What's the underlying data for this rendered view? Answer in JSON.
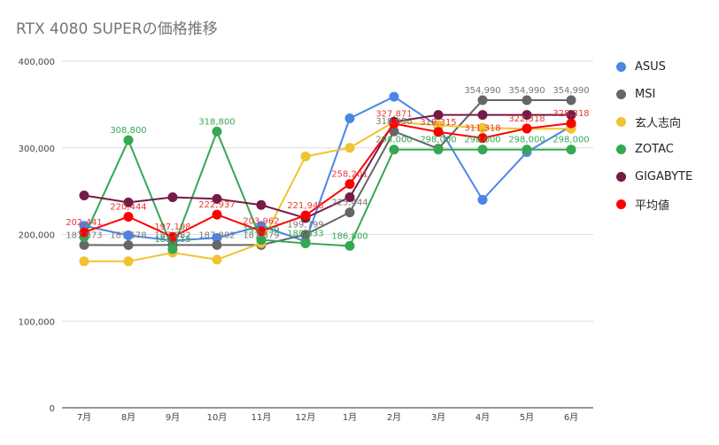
{
  "chart_data": {
    "type": "line",
    "title": "RTX 4080 SUPERの価格推移",
    "xlabel": "",
    "ylabel": "",
    "categories": [
      "7月",
      "8月",
      "9月",
      "10月",
      "11月",
      "12月",
      "1月",
      "2月",
      "3月",
      "4月",
      "5月",
      "6月"
    ],
    "ylim": [
      0,
      400000
    ],
    "yticks": [
      0,
      100000,
      200000,
      300000,
      400000
    ],
    "ytick_labels": [
      "0",
      "100,000",
      "200,000",
      "300,000",
      "400,000"
    ],
    "grid": true,
    "legend_position": "right",
    "series": [
      {
        "name": "ASUS",
        "color": "#4a86e8",
        "values": [
          210000,
          199000,
          193000,
          196000,
          210000,
          192000,
          334000,
          359000,
          325000,
          240000,
          295000,
          325000
        ]
      },
      {
        "name": "MSI",
        "color": "#666666",
        "values": [
          187873,
          187678,
          187882,
          187882,
          187879,
          199799,
          225444,
          318956,
          299000,
          354990,
          354990,
          354990
        ]
      },
      {
        "name": "玄人志向",
        "color": "#f1c232",
        "values": [
          169000,
          169000,
          179000,
          171000,
          190000,
          290000,
          300000,
          330000,
          326000,
          323000,
          322000,
          322000
        ]
      },
      {
        "name": "ZOTAC",
        "color": "#34a853",
        "values": [
          197000,
          308800,
          183115,
          318800,
          193799,
          189833,
          186800,
          298000,
          298000,
          298000,
          298000,
          298000
        ]
      },
      {
        "name": "GIGABYTE",
        "color": "#741b47",
        "values": [
          245000,
          237000,
          243000,
          241000,
          234000,
          219000,
          243000,
          330000,
          338000,
          338000,
          338000,
          338000
        ]
      },
      {
        "name": "平均値",
        "color": "#ff0000",
        "values": [
          202441,
          220444,
          197198,
          222937,
          203962,
          221948,
          258201,
          327871,
          318315,
          311318,
          322318,
          328318
        ]
      }
    ],
    "data_labels": [
      {
        "text": "202,441",
        "series": 5,
        "index": 0,
        "color": "#e53935"
      },
      {
        "text": "220,444",
        "series": 5,
        "index": 1,
        "color": "#e53935"
      },
      {
        "text": "197,198",
        "series": 5,
        "index": 2,
        "color": "#e53935"
      },
      {
        "text": "222,937",
        "series": 5,
        "index": 3,
        "color": "#e53935"
      },
      {
        "text": "203,962",
        "series": 5,
        "index": 4,
        "color": "#e53935"
      },
      {
        "text": "221,948",
        "series": 5,
        "index": 5,
        "color": "#e53935"
      },
      {
        "text": "258,201",
        "series": 5,
        "index": 6,
        "color": "#e53935"
      },
      {
        "text": "327,871",
        "series": 5,
        "index": 7,
        "color": "#e53935"
      },
      {
        "text": "318,315",
        "series": 5,
        "index": 8,
        "color": "#e53935"
      },
      {
        "text": "311,318",
        "series": 5,
        "index": 9,
        "color": "#e53935"
      },
      {
        "text": "322,318",
        "series": 5,
        "index": 10,
        "color": "#e53935"
      },
      {
        "text": "328,318",
        "series": 5,
        "index": 11,
        "color": "#e53935"
      },
      {
        "text": "187,873",
        "series": 1,
        "index": 0,
        "color": "#777777"
      },
      {
        "text": "187,678",
        "series": 1,
        "index": 1,
        "color": "#777777"
      },
      {
        "text": "187,882",
        "series": 1,
        "index": 2,
        "color": "#777777"
      },
      {
        "text": "187,882",
        "series": 1,
        "index": 3,
        "color": "#777777"
      },
      {
        "text": "187,879",
        "series": 1,
        "index": 4,
        "color": "#777777"
      },
      {
        "text": "199,799",
        "series": 1,
        "index": 5,
        "color": "#777777"
      },
      {
        "text": "225,444",
        "series": 1,
        "index": 6,
        "color": "#777777"
      },
      {
        "text": "318,956",
        "series": 1,
        "index": 7,
        "color": "#777777"
      },
      {
        "text": "354,990",
        "series": 1,
        "index": 9,
        "color": "#777777"
      },
      {
        "text": "354,990",
        "series": 1,
        "index": 10,
        "color": "#777777"
      },
      {
        "text": "354,990",
        "series": 1,
        "index": 11,
        "color": "#777777"
      },
      {
        "text": "308,800",
        "series": 3,
        "index": 1,
        "color": "#34a853"
      },
      {
        "text": "183,115",
        "series": 3,
        "index": 2,
        "color": "#34a853"
      },
      {
        "text": "318,800",
        "series": 3,
        "index": 3,
        "color": "#34a853"
      },
      {
        "text": "193,799",
        "series": 3,
        "index": 4,
        "color": "#34a853"
      },
      {
        "text": "189,833",
        "series": 3,
        "index": 5,
        "color": "#34a853"
      },
      {
        "text": "186,800",
        "series": 3,
        "index": 6,
        "color": "#34a853"
      },
      {
        "text": "298,000",
        "series": 3,
        "index": 7,
        "color": "#34a853"
      },
      {
        "text": "298,000",
        "series": 3,
        "index": 8,
        "color": "#34a853"
      },
      {
        "text": "298,000",
        "series": 3,
        "index": 9,
        "color": "#34a853"
      },
      {
        "text": "298,000",
        "series": 3,
        "index": 10,
        "color": "#34a853"
      },
      {
        "text": "298,000",
        "series": 3,
        "index": 11,
        "color": "#34a853"
      }
    ]
  }
}
